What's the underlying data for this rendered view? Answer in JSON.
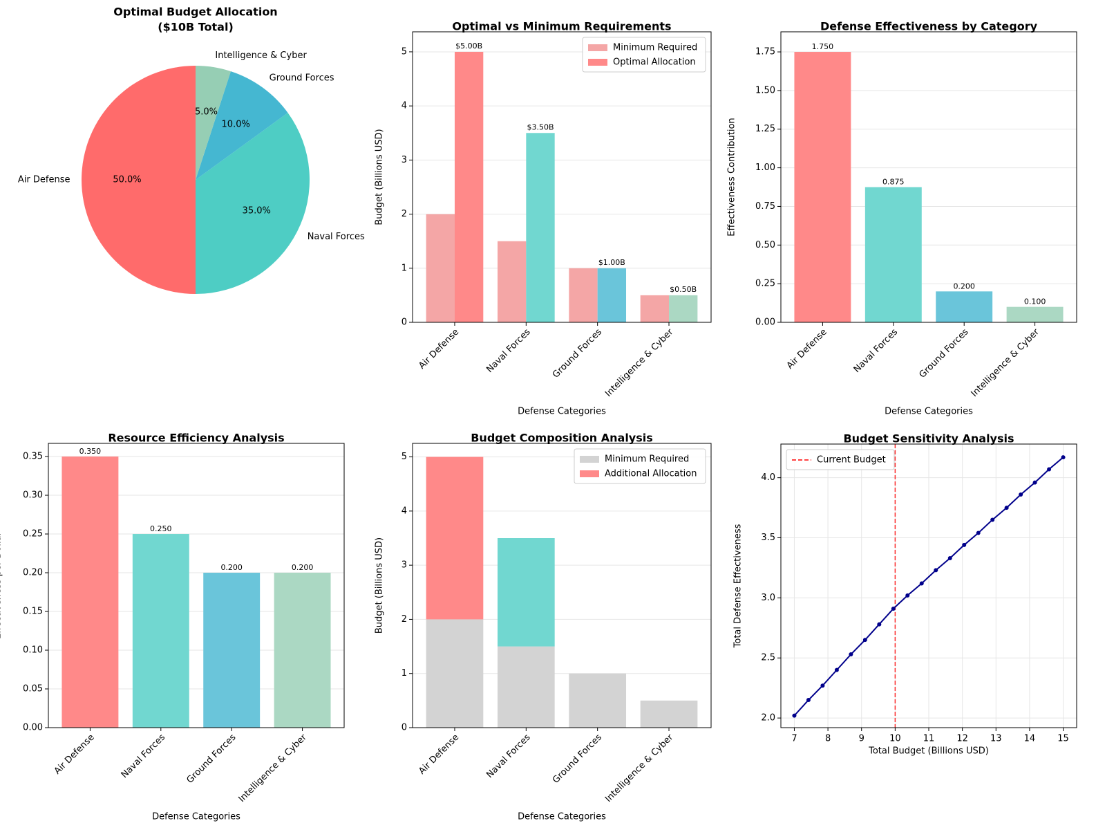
{
  "chart_data": [
    {
      "type": "pie",
      "title": [
        "Optimal Budget Allocation",
        "($10B Total)"
      ],
      "categories": [
        "Air Defense",
        "Naval Forces",
        "Ground Forces",
        "Intelligence & Cyber"
      ],
      "values": [
        50,
        35,
        10,
        5
      ],
      "value_labels": [
        "50.0%",
        "35.0%",
        "10.0%",
        "5.0%"
      ],
      "colors": [
        "#ff6b6b",
        "#4ecdc4",
        "#45b7d1",
        "#96ceb4"
      ],
      "start_angle": 90,
      "counterclockwise": true
    },
    {
      "type": "grouped_bar",
      "title": "Optimal vs Minimum Requirements",
      "xlabel": "Defense Categories",
      "ylabel": "Budget (Billions USD)",
      "categories": [
        "Air Defense",
        "Naval Forces",
        "Ground Forces",
        "Intelligence & Cyber"
      ],
      "series": [
        {
          "name": "Minimum Required",
          "color": "#f4a6a6",
          "values": [
            2,
            1.5,
            1,
            0.5
          ]
        },
        {
          "name": "Optimal Allocation",
          "colors": [
            "#ff8989",
            "#71d7d0",
            "#6ac5da",
            "#abd8c3"
          ],
          "values": [
            5,
            3.5,
            1,
            0.5
          ],
          "value_labels": [
            "$5.00B",
            "$3.50B",
            "$1.00B",
            "$0.50B"
          ]
        }
      ],
      "ylim": [
        0,
        5.37
      ],
      "yticks": [
        0,
        1,
        2,
        3,
        4,
        5
      ],
      "grid": true,
      "legend": "upper right"
    },
    {
      "type": "bar",
      "title": "Defense Effectiveness by Category",
      "xlabel": "Defense Categories",
      "ylabel": "Effectiveness Contribution",
      "categories": [
        "Air Defense",
        "Naval Forces",
        "Ground Forces",
        "Intelligence & Cyber"
      ],
      "values": [
        1.75,
        0.875,
        0.2,
        0.1
      ],
      "value_labels": [
        "1.750",
        "0.875",
        "0.200",
        "0.100"
      ],
      "colors": [
        "#ff8989",
        "#71d7d0",
        "#6ac5da",
        "#abd8c3"
      ],
      "ylim": [
        0,
        1.88
      ],
      "yticks": [
        {
          "value": 0,
          "label": "0.00"
        },
        {
          "value": 0.25,
          "label": "0.25"
        },
        {
          "value": 0.5,
          "label": "0.50"
        },
        {
          "value": 0.75,
          "label": "0.75"
        },
        {
          "value": 1,
          "label": "1.00"
        },
        {
          "value": 1.25,
          "label": "1.25"
        },
        {
          "value": 1.5,
          "label": "1.50"
        },
        {
          "value": 1.75,
          "label": "1.75"
        }
      ],
      "grid": true
    },
    {
      "type": "bar",
      "title": "Resource Efficiency Analysis",
      "xlabel": "Defense Categories",
      "ylabel": "Effectiveness per Dollar",
      "categories": [
        "Air Defense",
        "Naval Forces",
        "Ground Forces",
        "Intelligence & Cyber"
      ],
      "values": [
        0.35,
        0.25,
        0.2,
        0.2
      ],
      "value_labels": [
        "0.350",
        "0.250",
        "0.200",
        "0.200"
      ],
      "colors": [
        "#ff8989",
        "#71d7d0",
        "#6ac5da",
        "#abd8c3"
      ],
      "ylim": [
        0,
        0.367
      ],
      "yticks": [
        {
          "value": 0,
          "label": "0.00"
        },
        {
          "value": 0.05,
          "label": "0.05"
        },
        {
          "value": 0.1,
          "label": "0.10"
        },
        {
          "value": 0.15,
          "label": "0.15"
        },
        {
          "value": 0.2,
          "label": "0.20"
        },
        {
          "value": 0.25,
          "label": "0.25"
        },
        {
          "value": 0.3,
          "label": "0.30"
        },
        {
          "value": 0.35,
          "label": "0.35"
        }
      ],
      "grid": true
    },
    {
      "type": "stacked_bar",
      "title": "Budget Composition Analysis",
      "xlabel": "Defense Categories",
      "ylabel": "Budget (Billions USD)",
      "categories": [
        "Air Defense",
        "Naval Forces",
        "Ground Forces",
        "Intelligence & Cyber"
      ],
      "series": [
        {
          "name": "Minimum Required",
          "color": "#d3d3d3",
          "values": [
            2,
            1.5,
            1,
            0.5
          ]
        },
        {
          "name": "Additional Allocation",
          "colors": [
            "#ff8989",
            "#71d7d0",
            "#6ac5da",
            "#abd8c3"
          ],
          "values": [
            3,
            2,
            0,
            0
          ]
        }
      ],
      "ylim": [
        0,
        5.25
      ],
      "yticks": [
        0,
        1,
        2,
        3,
        4,
        5
      ],
      "grid": true,
      "legend": "upper right"
    },
    {
      "type": "line",
      "title": "Budget Sensitivity Analysis",
      "xlabel": "Total Budget (Billions USD)",
      "ylabel": "Total Defense Effectiveness",
      "x": [
        7,
        7.421,
        7.842,
        8.263,
        8.684,
        9.105,
        9.526,
        9.947,
        10.368,
        10.789,
        11.211,
        11.632,
        12.053,
        12.474,
        12.895,
        13.316,
        13.737,
        14.158,
        14.579,
        15
      ],
      "series": [
        {
          "color": "#00008b",
          "values": [
            2.02,
            2.15,
            2.27,
            2.4,
            2.53,
            2.65,
            2.78,
            2.91,
            3.02,
            3.12,
            3.23,
            3.33,
            3.44,
            3.54,
            3.65,
            3.75,
            3.86,
            3.96,
            4.07,
            4.17
          ]
        }
      ],
      "vline": {
        "x": 10,
        "name": "Current Budget",
        "color": "#ff0000"
      },
      "xlim": [
        6.6,
        15.4
      ],
      "xticks": [
        7,
        8,
        9,
        10,
        11,
        12,
        13,
        14,
        15
      ],
      "ylim": [
        1.92,
        4.28
      ],
      "yticks": [
        {
          "value": 2,
          "label": "2.0"
        },
        {
          "value": 2.5,
          "label": "2.5"
        },
        {
          "value": 3,
          "label": "3.0"
        },
        {
          "value": 3.5,
          "label": "3.5"
        },
        {
          "value": 4,
          "label": "4.0"
        }
      ],
      "grid": true,
      "legend": "upper left"
    }
  ]
}
